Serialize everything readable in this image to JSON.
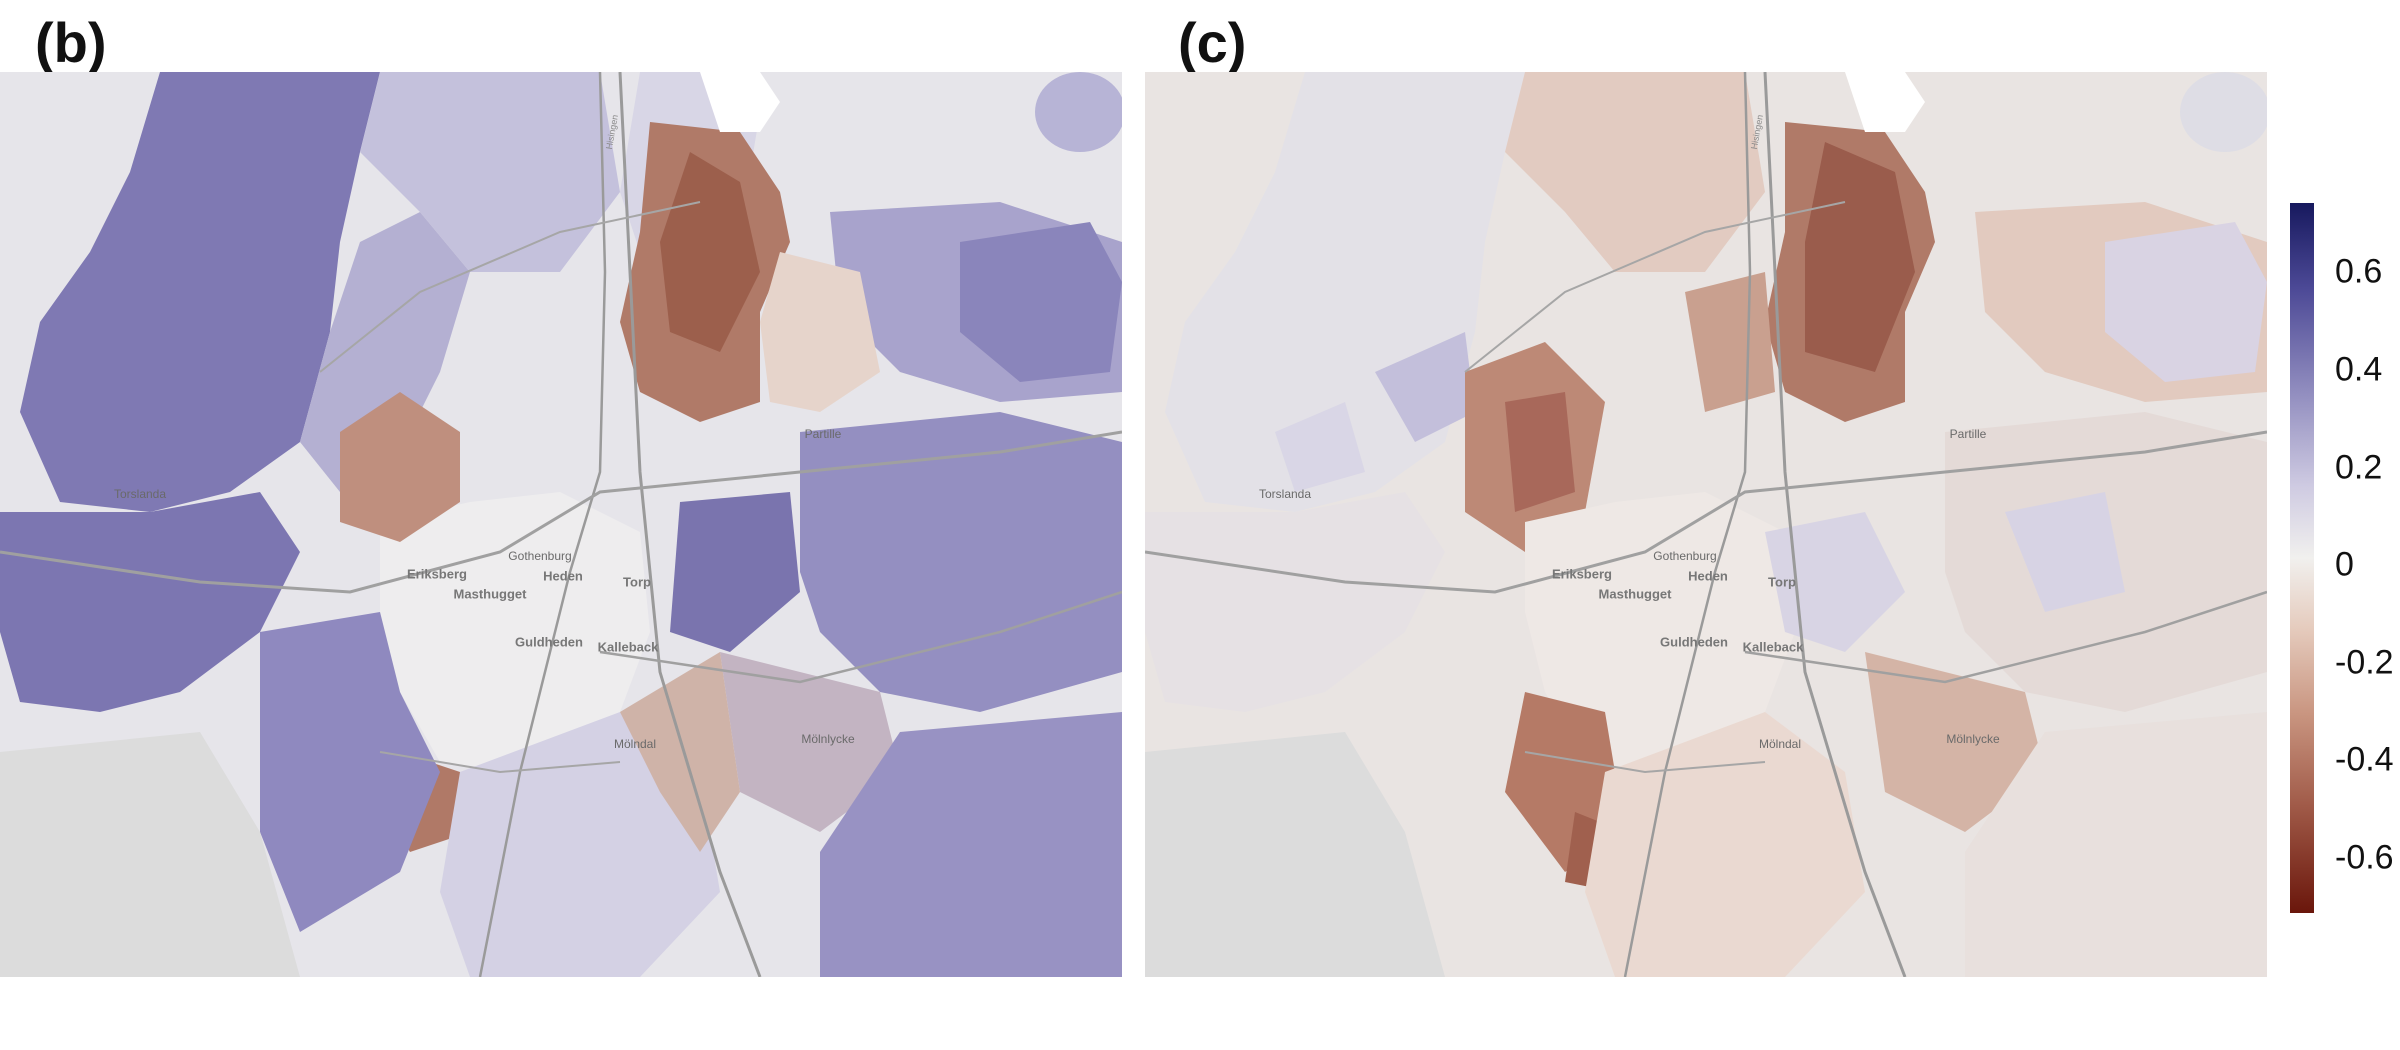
{
  "panels": [
    {
      "label": "(b)",
      "place_labels": [
        "Torslanda",
        "Gothenburg",
        "Eriksberg",
        "Heden",
        "Masthugget",
        "Torp",
        "Guldheden",
        "Kalleback",
        "Partille",
        "Mölndal",
        "Mölnlycke",
        "Hisingen"
      ],
      "tint_color": "#8680b8"
    },
    {
      "label": "(c)",
      "place_labels": [
        "Torslanda",
        "Gothenburg",
        "Eriksberg",
        "Heden",
        "Masthugget",
        "Torp",
        "Guldheden",
        "Kalleback",
        "Partille",
        "Mölndal",
        "Mölnlycke",
        "Hisingen"
      ],
      "tint_color": "#e3cfc4"
    }
  ],
  "colorbar": {
    "ticks": [
      "0.6",
      "0.4",
      "0.2",
      "0",
      "-0.2",
      "-0.4",
      "-0.6"
    ],
    "max_color": "#17195e",
    "mid_color": "#f1f0ee",
    "min_color": "#6a160b"
  }
}
